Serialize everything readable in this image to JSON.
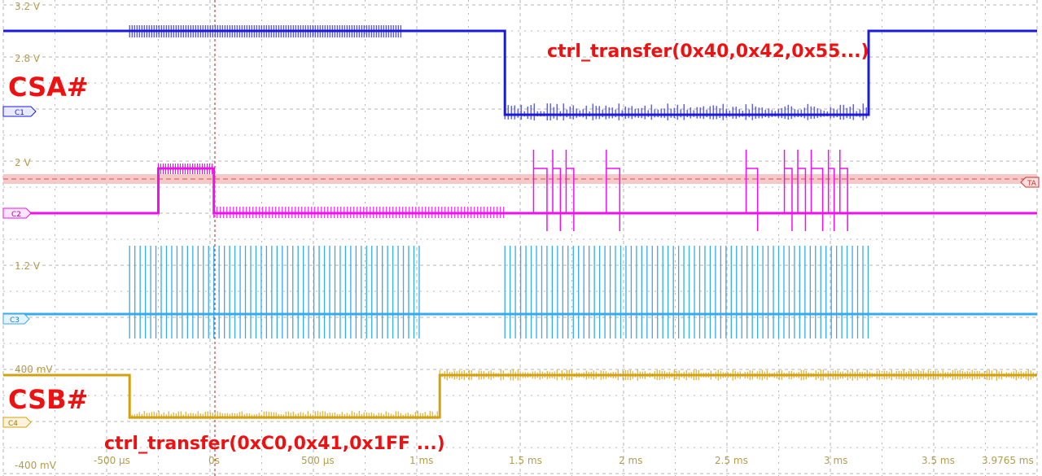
{
  "chart_data": {
    "type": "line",
    "title": "",
    "xlabel": "",
    "ylabel": "",
    "grid": true,
    "y_tick_labels": [
      "3.2 V",
      "2.8 V",
      "2 V",
      "1.2 V",
      "400 mV",
      "-400 mV"
    ],
    "x_tick_labels": [
      {
        "t_ms": -0.5,
        "label": "-500 µs"
      },
      {
        "t_ms": 0,
        "label": "0s"
      },
      {
        "t_ms": 0.5,
        "label": "500 µs"
      },
      {
        "t_ms": 1,
        "label": "1 ms"
      },
      {
        "t_ms": 1.5,
        "label": "1.5 ms"
      },
      {
        "t_ms": 2,
        "label": "2 ms"
      },
      {
        "t_ms": 2.5,
        "label": "2.5 ms"
      },
      {
        "t_ms": 3,
        "label": "3 ms"
      },
      {
        "t_ms": 3.5,
        "label": "3.5 ms"
      },
      {
        "t_ms": 3.9765,
        "label": "3.9765 ms"
      }
    ],
    "xlim_ms": [
      -1.1,
      4.3
    ],
    "trigger_time_ms": 0,
    "series": [
      {
        "name": "C1",
        "color": "#1a1adc",
        "ymin_v": 2.95,
        "ymax_v": 3.15,
        "segments": [
          [
            -1.1,
            3.15
          ],
          [
            1.52,
            3.15
          ],
          [
            1.52,
            2.95
          ],
          [
            3.42,
            2.95
          ],
          [
            3.42,
            3.15
          ],
          [
            4.3,
            3.15
          ]
        ]
      },
      {
        "name": "C2",
        "color": "#ee11ee",
        "ymin_v": 1.6,
        "ymax_v": 2.0,
        "segments": [
          [
            -1.1,
            1.6
          ],
          [
            -0.29,
            1.6
          ],
          [
            -0.29,
            2.0
          ],
          [
            0.0,
            2.0
          ],
          [
            0.0,
            1.6
          ],
          [
            4.3,
            1.6
          ]
        ]
      },
      {
        "name": "C3",
        "color": "#35aaee",
        "ymin_v": -0.2,
        "ymax_v": 0.2,
        "segments": [
          [
            -1.1,
            0.0
          ],
          [
            4.3,
            0.0
          ]
        ]
      },
      {
        "name": "C4",
        "color": "#d4a010",
        "ymin_v": 0.0,
        "ymax_v": 0.4,
        "segments": [
          [
            -1.1,
            0.4
          ],
          [
            -0.44,
            0.4
          ],
          [
            -0.44,
            0.0
          ],
          [
            1.18,
            0.0
          ],
          [
            1.18,
            0.4
          ],
          [
            4.3,
            0.4
          ]
        ]
      }
    ],
    "threshold_marker": "TA"
  },
  "markers": {
    "c1": "C1",
    "c2": "C2",
    "c3": "C3",
    "c4": "C4"
  },
  "annotations": {
    "csa": "CSA#",
    "csb": "CSB#",
    "transfer_a": "ctrl_transfer(0x40,0x42,0x55...)",
    "transfer_b": "ctrl_transfer(0xC0,0x41,0x1FF ...)"
  },
  "colors": {
    "background": "#ffffff",
    "grid": "#b5b5b5",
    "annotation": "#ee1111",
    "axis_label": "#b39c4a",
    "trigger": "#aa2222",
    "threshold_band": "#f5c0c0"
  }
}
